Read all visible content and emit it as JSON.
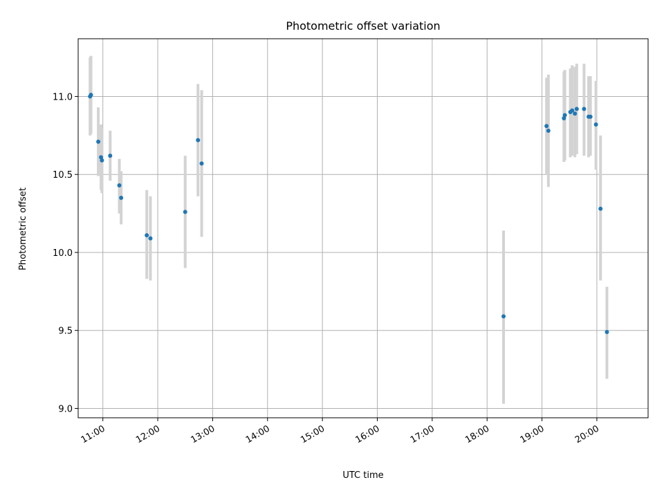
{
  "chart_data": {
    "type": "scatter",
    "title": "Photometric offset variation",
    "xlabel": "UTC time",
    "ylabel": "Photometric offset",
    "x_ticks": [
      "11:00",
      "12:00",
      "13:00",
      "14:00",
      "15:00",
      "16:00",
      "17:00",
      "18:00",
      "19:00",
      "20:00"
    ],
    "y_ticks": [
      "9.0",
      "9.5",
      "10.0",
      "10.5",
      "11.0"
    ],
    "xlim": [
      "10:33",
      "20:56"
    ],
    "ylim": [
      8.94,
      11.37
    ],
    "grid": true,
    "colors": {
      "marker": "#1f77b4",
      "errorbar": "#d3d3d3",
      "grid": "#b0b0b0"
    },
    "points": [
      {
        "x": "10:46",
        "y": 11.0,
        "ylow": 10.75,
        "yhigh": 11.25
      },
      {
        "x": "10:47",
        "y": 11.01,
        "ylow": 10.76,
        "yhigh": 11.26
      },
      {
        "x": "10:55",
        "y": 10.71,
        "ylow": 10.49,
        "yhigh": 10.93
      },
      {
        "x": "10:58",
        "y": 10.61,
        "ylow": 10.4,
        "yhigh": 10.82
      },
      {
        "x": "10:59",
        "y": 10.59,
        "ylow": 10.38,
        "yhigh": 10.8
      },
      {
        "x": "11:08",
        "y": 10.62,
        "ylow": 10.46,
        "yhigh": 10.78
      },
      {
        "x": "11:18",
        "y": 10.43,
        "ylow": 10.25,
        "yhigh": 10.6
      },
      {
        "x": "11:20",
        "y": 10.35,
        "ylow": 10.18,
        "yhigh": 10.52
      },
      {
        "x": "11:48",
        "y": 10.11,
        "ylow": 9.83,
        "yhigh": 10.4
      },
      {
        "x": "11:52",
        "y": 10.09,
        "ylow": 9.82,
        "yhigh": 10.36
      },
      {
        "x": "12:30",
        "y": 10.26,
        "ylow": 9.9,
        "yhigh": 10.62
      },
      {
        "x": "12:44",
        "y": 10.72,
        "ylow": 10.36,
        "yhigh": 11.08
      },
      {
        "x": "12:48",
        "y": 10.57,
        "ylow": 10.1,
        "yhigh": 11.04
      },
      {
        "x": "18:18",
        "y": 9.59,
        "ylow": 9.03,
        "yhigh": 10.14
      },
      {
        "x": "19:05",
        "y": 10.81,
        "ylow": 10.5,
        "yhigh": 11.12
      },
      {
        "x": "19:07",
        "y": 10.78,
        "ylow": 10.42,
        "yhigh": 11.14
      },
      {
        "x": "19:24",
        "y": 10.86,
        "ylow": 10.58,
        "yhigh": 11.16
      },
      {
        "x": "19:25",
        "y": 10.88,
        "ylow": 10.59,
        "yhigh": 11.17
      },
      {
        "x": "19:31",
        "y": 10.9,
        "ylow": 10.61,
        "yhigh": 11.18
      },
      {
        "x": "19:33",
        "y": 10.91,
        "ylow": 10.62,
        "yhigh": 11.2
      },
      {
        "x": "19:36",
        "y": 10.89,
        "ylow": 10.61,
        "yhigh": 11.19
      },
      {
        "x": "19:38",
        "y": 10.92,
        "ylow": 10.63,
        "yhigh": 11.21
      },
      {
        "x": "19:46",
        "y": 10.92,
        "ylow": 10.62,
        "yhigh": 11.21
      },
      {
        "x": "19:51",
        "y": 10.87,
        "ylow": 10.61,
        "yhigh": 11.13
      },
      {
        "x": "19:53",
        "y": 10.87,
        "ylow": 10.62,
        "yhigh": 11.13
      },
      {
        "x": "19:59",
        "y": 10.82,
        "ylow": 10.53,
        "yhigh": 11.1
      },
      {
        "x": "20:04",
        "y": 10.28,
        "ylow": 9.82,
        "yhigh": 10.75
      },
      {
        "x": "20:11",
        "y": 9.49,
        "ylow": 9.19,
        "yhigh": 9.78
      }
    ]
  }
}
